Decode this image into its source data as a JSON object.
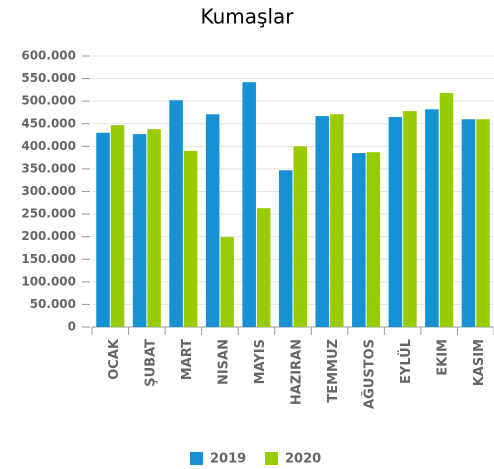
{
  "chart_data": {
    "type": "bar",
    "title": "Kumaşlar",
    "categories": [
      "OCAK",
      "ŞUBAT",
      "MART",
      "NISAN",
      "MAYIS",
      "HAZIRAN",
      "TEMMUZ",
      "AĞUSTOS",
      "EYLÜL",
      "EKIM",
      "KASIM"
    ],
    "series": [
      {
        "name": "2019",
        "color": "#1591d4",
        "values": [
          430000,
          427000,
          502000,
          471000,
          542000,
          347000,
          467000,
          385000,
          465000,
          482000,
          460000
        ]
      },
      {
        "name": "2020",
        "color": "#99cc00",
        "values": [
          447000,
          438000,
          390000,
          199000,
          263000,
          400000,
          471000,
          387000,
          478000,
          518000,
          460000
        ]
      }
    ],
    "ylim": [
      0,
      600000
    ],
    "yticks": [
      {
        "value": 0,
        "label": "0"
      },
      {
        "value": 50000,
        "label": "50.000"
      },
      {
        "value": 100000,
        "label": "100.000"
      },
      {
        "value": 150000,
        "label": "150.000"
      },
      {
        "value": 200000,
        "label": "200.000"
      },
      {
        "value": 250000,
        "label": "250.000"
      },
      {
        "value": 300000,
        "label": "300.000"
      },
      {
        "value": 350000,
        "label": "350.000"
      },
      {
        "value": 400000,
        "label": "400.000"
      },
      {
        "value": 450000,
        "label": "450.000"
      },
      {
        "value": 500000,
        "label": "500.000"
      },
      {
        "value": 550000,
        "label": "550.000"
      },
      {
        "value": 600000,
        "label": "600.000"
      }
    ],
    "grid": true,
    "legend": "bottom"
  }
}
